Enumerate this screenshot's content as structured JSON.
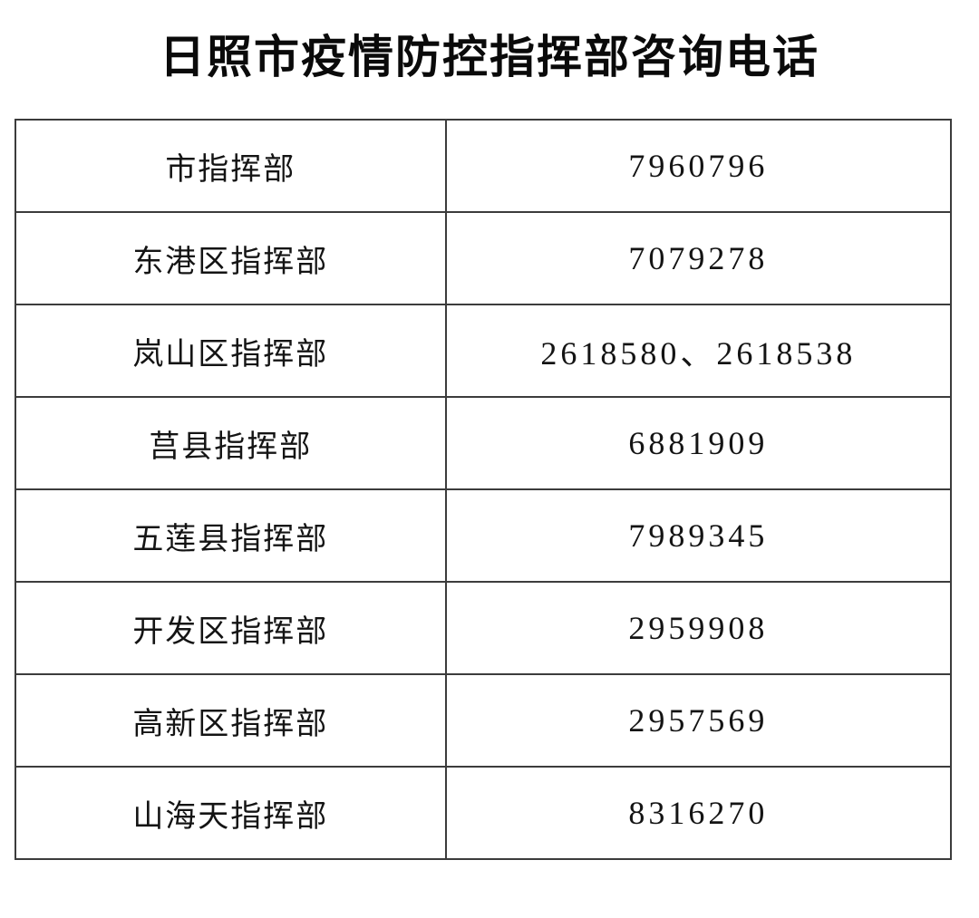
{
  "page": {
    "title": "日照市疫情防控指挥部咨询电话",
    "background_color": "#ffffff",
    "text_color": "#141414",
    "border_color": "#3c3c3c"
  },
  "table": {
    "columns": [
      "department",
      "phone"
    ],
    "rows": [
      {
        "department": "市指挥部",
        "phone": "7960796"
      },
      {
        "department": "东港区指挥部",
        "phone": "7079278"
      },
      {
        "department": "岚山区指挥部",
        "phone": "2618580、2618538"
      },
      {
        "department": "莒县指挥部",
        "phone": "6881909"
      },
      {
        "department": "五莲县指挥部",
        "phone": "7989345"
      },
      {
        "department": "开发区指挥部",
        "phone": "2959908"
      },
      {
        "department": "高新区指挥部",
        "phone": "2957569"
      },
      {
        "department": "山海天指挥部",
        "phone": "8316270"
      }
    ]
  }
}
